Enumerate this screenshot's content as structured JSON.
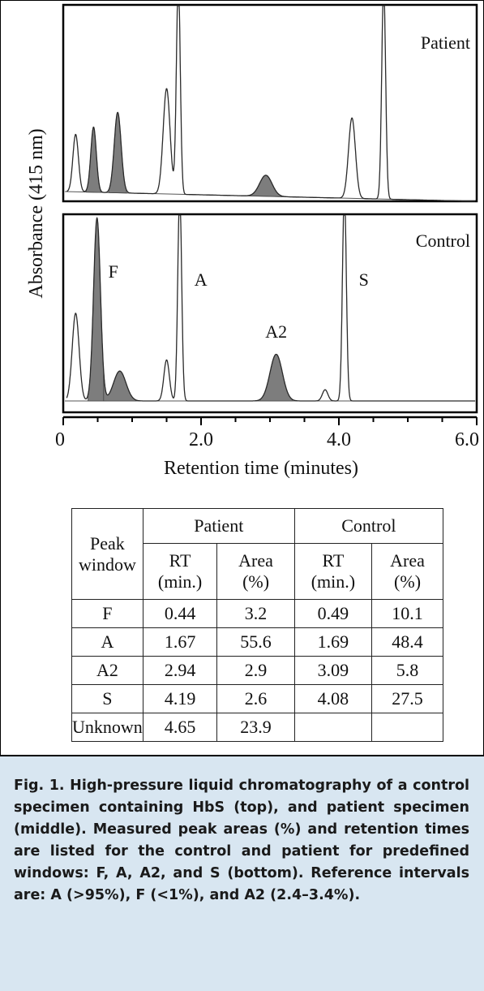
{
  "chart_data": {
    "type": "line",
    "ylabel": "Absorbance (415 nm)",
    "xlabel": "Retention time (minutes)",
    "xlim": [
      0,
      6
    ],
    "x_ticks": [
      "0",
      "2.0",
      "4.0",
      "6.0"
    ],
    "panels": [
      {
        "name": "Patient",
        "peaks": [
          {
            "rt": 0.18,
            "height": 0.3
          },
          {
            "rt": 0.44,
            "height": 0.34,
            "shaded": true
          },
          {
            "rt": 0.79,
            "height": 0.42,
            "shaded": true
          },
          {
            "rt": 1.5,
            "height": 0.55
          },
          {
            "rt": 1.67,
            "height": 1.12
          },
          {
            "rt": 2.94,
            "height": 0.11,
            "shaded": true
          },
          {
            "rt": 4.19,
            "height": 0.42
          },
          {
            "rt": 4.65,
            "height": 1.12
          }
        ]
      },
      {
        "name": "Control",
        "peaks": [
          {
            "rt": 0.18,
            "height": 0.47
          },
          {
            "rt": 0.49,
            "height": 0.98,
            "shaded": true
          },
          {
            "rt": 0.82,
            "height": 0.16,
            "shaded": true
          },
          {
            "rt": 1.5,
            "height": 0.22
          },
          {
            "rt": 1.69,
            "height": 1.12
          },
          {
            "rt": 3.09,
            "height": 0.25,
            "shaded": true
          },
          {
            "rt": 3.8,
            "height": 0.06
          },
          {
            "rt": 4.08,
            "height": 1.12
          }
        ],
        "annotations": [
          {
            "label": "F",
            "rt": 0.49
          },
          {
            "label": "A",
            "rt": 1.69
          },
          {
            "label": "A2",
            "rt": 3.09
          },
          {
            "label": "S",
            "rt": 4.08
          }
        ]
      }
    ]
  },
  "table": {
    "header_peak": "Peak window",
    "groups": [
      "Patient",
      "Control"
    ],
    "subheaders": [
      "RT (min.)",
      "Area (%)",
      "RT (min.)",
      "Area (%)"
    ],
    "rows": [
      [
        "F",
        "0.44",
        "3.2",
        "0.49",
        "10.1"
      ],
      [
        "A",
        "1.67",
        "55.6",
        "1.69",
        "48.4"
      ],
      [
        "A2",
        "2.94",
        "2.9",
        "3.09",
        "5.8"
      ],
      [
        "S",
        "4.19",
        "2.6",
        "4.08",
        "27.5"
      ],
      [
        "Unknown",
        "4.65",
        "23.9",
        "",
        ""
      ]
    ]
  },
  "caption": {
    "label": "Fig. 1.",
    "text": "High-pressure liquid chromatography of a control specimen containing HbS (top), and patient specimen (middle). Measured peak areas (%) and retention times are listed for the control and patient for predefined windows: F, A, A2, and S (bottom). Reference intervals are: A (>95%), F (<1%), and A2 (2.4–3.4%)."
  },
  "colors": {
    "trace": "#2a2a2a",
    "shade": "#7d7d7d",
    "caption_bg": "#d8e6f1"
  }
}
